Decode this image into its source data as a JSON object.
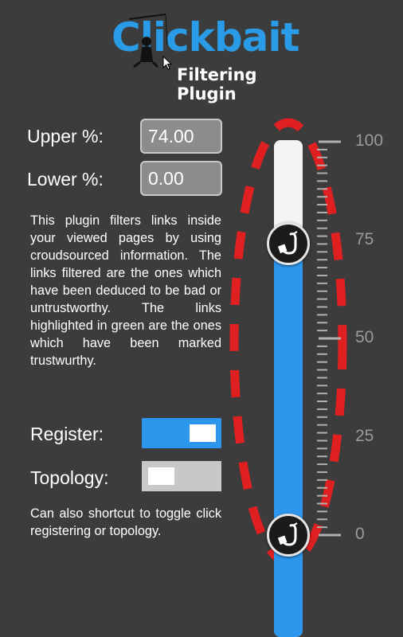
{
  "header": {
    "logo_text": "Clickbait",
    "subtitle": "Filtering Plugin"
  },
  "fields": {
    "upper": {
      "label": "Upper %:",
      "value": "74.00"
    },
    "lower": {
      "label": "Lower %:",
      "value": "0.00"
    }
  },
  "description": "This plugin filters links inside your viewed pages by using croudsourced information. The links filtered are the ones which have been deduced to be bad or untrustworthy. The links highlighted in green are the ones which have been marked trustwurthy.",
  "toggles": {
    "register": {
      "label": "Register:",
      "on": true
    },
    "topology": {
      "label": "Topology:",
      "on": false
    }
  },
  "footer_text": "Can also shortcut to toggle click registering or topology.",
  "slider": {
    "upper_value": 74,
    "lower_value": 0,
    "scale_labels": [
      "100",
      "75",
      "50",
      "25",
      "0"
    ]
  },
  "colors": {
    "brand_blue": "#2a9be6",
    "fill_blue": "#2d97ee",
    "outline_red": "#e02020",
    "background": "#3c3c3c"
  },
  "icons": {
    "handle": "fishing-hook-icon",
    "logo_figure": "fisherman-icon",
    "cursor": "mouse-pointer-icon"
  }
}
